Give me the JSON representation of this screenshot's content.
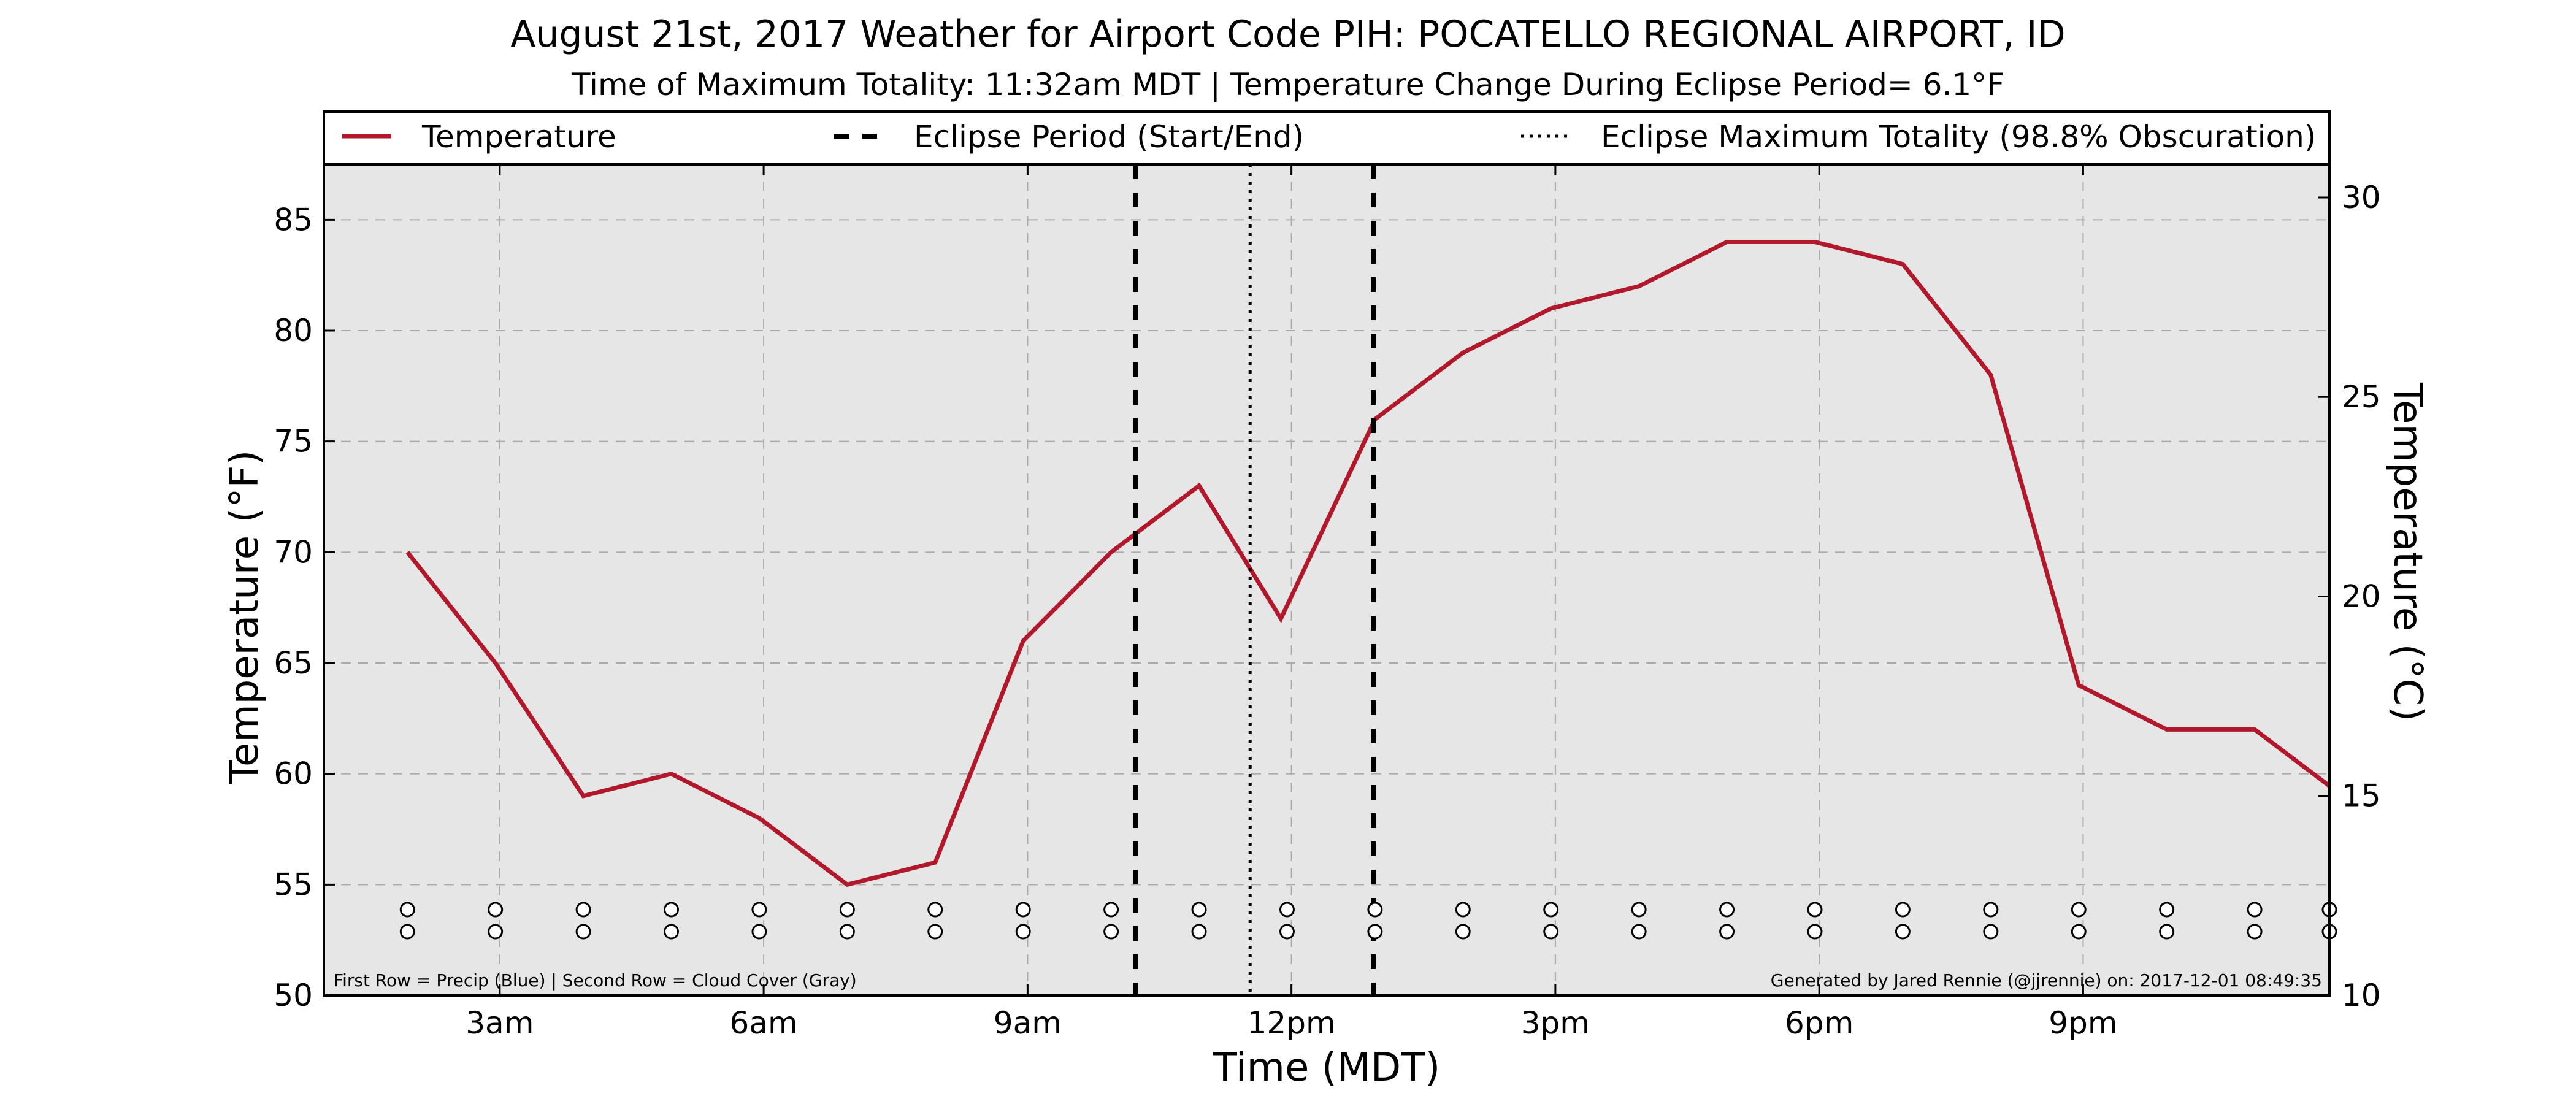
{
  "chart_data": {
    "type": "line",
    "title": "August 21st, 2017 Weather for Airport Code PIH: POCATELLO REGIONAL AIRPORT, ID",
    "subtitle": "Time of Maximum Totality: 11:32am MDT | Temperature Change During Eclipse Period= 6.1°F",
    "xlabel": "Time (MDT)",
    "ylabel": "Temperature (°F)",
    "y2label": "Temperature (°C)",
    "xlim": [
      1,
      23.8
    ],
    "ylim": [
      50,
      87.5
    ],
    "y2lim": [
      10,
      30.83
    ],
    "x_ticks": [
      {
        "x": 3,
        "label": "3am"
      },
      {
        "x": 6,
        "label": "6am"
      },
      {
        "x": 9,
        "label": "9am"
      },
      {
        "x": 12,
        "label": "12pm"
      },
      {
        "x": 15,
        "label": "3pm"
      },
      {
        "x": 18,
        "label": "6pm"
      },
      {
        "x": 21,
        "label": "9pm"
      }
    ],
    "y_ticks": [
      50,
      55,
      60,
      65,
      70,
      75,
      80,
      85
    ],
    "y2_ticks": [
      10,
      15,
      20,
      25,
      30
    ],
    "grid": true,
    "legend_position": "top",
    "legend": [
      {
        "label": "Temperature",
        "style": "solid"
      },
      {
        "label": "Eclipse Period (Start/End)",
        "style": "dashed"
      },
      {
        "label": "Eclipse Maximum Totality (98.8% Obscuration)",
        "style": "dotted"
      }
    ],
    "series": [
      {
        "name": "Temperature",
        "color": "#b2182b",
        "x": [
          1.95,
          2.95,
          3.95,
          4.95,
          5.95,
          6.95,
          7.95,
          8.95,
          9.95,
          10.95,
          11.88,
          12.95,
          13.95,
          14.95,
          15.95,
          16.95,
          17.95,
          18.95,
          19.95,
          20.95,
          21.95,
          22.95,
          23.95
        ],
        "y": [
          70,
          65,
          59,
          60,
          58,
          55,
          56,
          66,
          70,
          73,
          67,
          76,
          79,
          81,
          82,
          84,
          84,
          83,
          78,
          64,
          62,
          62,
          59
        ]
      }
    ],
    "eclipse_start_x": 10.23,
    "eclipse_end_x": 12.93,
    "eclipse_max_x": 11.53,
    "marker_x": [
      1.95,
      2.95,
      3.95,
      4.95,
      5.95,
      6.95,
      7.95,
      8.95,
      9.95,
      10.95,
      11.95,
      12.95,
      13.95,
      14.95,
      15.95,
      16.95,
      17.95,
      18.95,
      19.95,
      20.95,
      21.95,
      22.95,
      23.8
    ],
    "footnote_left": "First Row = Precip (Blue) | Second Row = Cloud Cover (Gray)",
    "footnote_right": "Generated by Jared Rennie (@jjrennie) on: 2017-12-01 08:49:35"
  },
  "colors": {
    "temperature": "#b2182b",
    "plot_background": "#e6e6e6",
    "grid": "#aaaaaa"
  }
}
